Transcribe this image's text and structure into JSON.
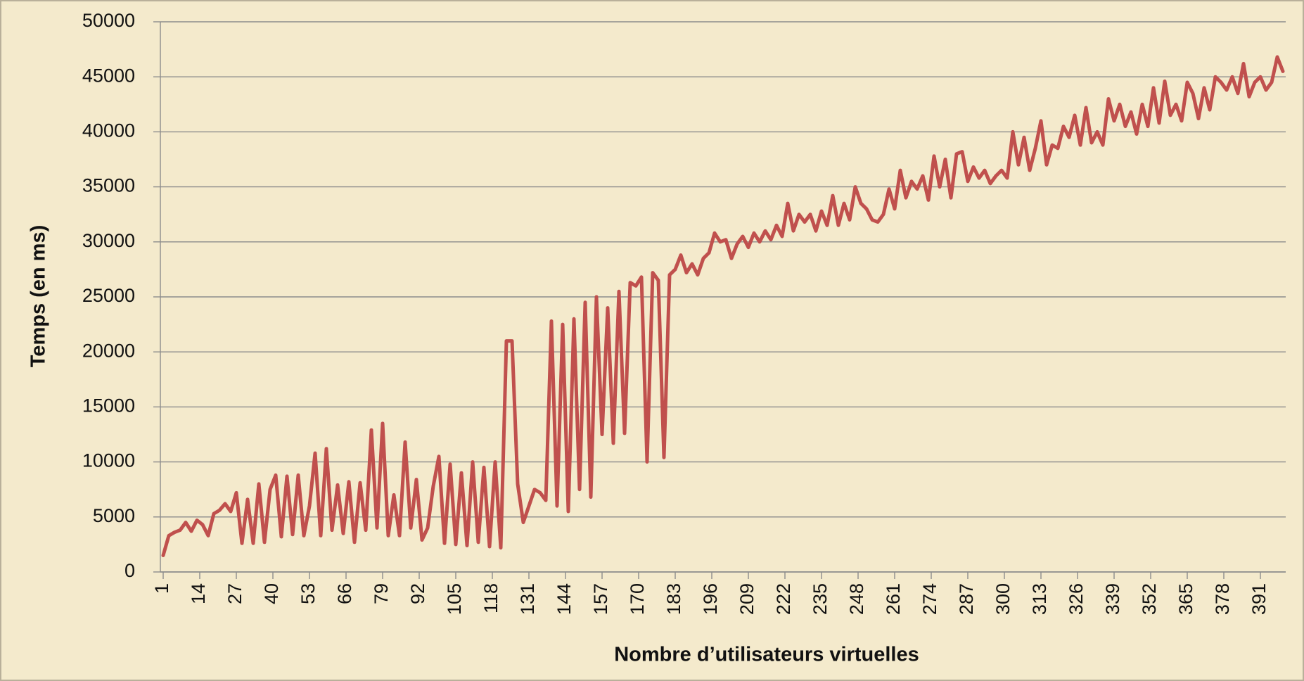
{
  "chart_data": {
    "type": "line",
    "ylabel": "Temps (en ms)",
    "xlabel": "Nombre d’utilisateurs virtuelles",
    "color": "#c0504d",
    "grid": true,
    "xlim": [
      0,
      400
    ],
    "ylim": [
      0,
      50000
    ],
    "yticks": [
      0,
      5000,
      10000,
      15000,
      20000,
      25000,
      30000,
      35000,
      40000,
      45000,
      50000
    ],
    "xticks": [
      1,
      14,
      27,
      40,
      53,
      66,
      79,
      92,
      105,
      118,
      131,
      144,
      157,
      170,
      183,
      196,
      209,
      222,
      235,
      248,
      261,
      274,
      287,
      300,
      313,
      326,
      339,
      352,
      365,
      378,
      391
    ],
    "x": [
      1,
      3,
      5,
      7,
      9,
      11,
      13,
      15,
      17,
      19,
      21,
      23,
      25,
      27,
      29,
      31,
      33,
      35,
      37,
      39,
      41,
      43,
      45,
      47,
      49,
      51,
      53,
      55,
      57,
      59,
      61,
      63,
      65,
      67,
      69,
      71,
      73,
      75,
      77,
      79,
      81,
      83,
      85,
      87,
      89,
      91,
      93,
      95,
      97,
      99,
      101,
      103,
      105,
      107,
      109,
      111,
      113,
      115,
      117,
      119,
      121,
      123,
      125,
      127,
      129,
      131,
      133,
      135,
      137,
      139,
      141,
      143,
      145,
      147,
      149,
      151,
      153,
      155,
      157,
      159,
      161,
      163,
      165,
      167,
      169,
      171,
      173,
      175,
      177,
      179,
      181,
      183,
      185,
      187,
      189,
      191,
      193,
      195,
      197,
      199,
      201,
      203,
      205,
      207,
      209,
      211,
      213,
      215,
      217,
      219,
      221,
      223,
      225,
      227,
      229,
      231,
      233,
      235,
      237,
      239,
      241,
      243,
      245,
      247,
      249,
      251,
      253,
      255,
      257,
      259,
      261,
      263,
      265,
      267,
      269,
      271,
      273,
      275,
      277,
      279,
      281,
      283,
      285,
      287,
      289,
      291,
      293,
      295,
      297,
      299,
      301,
      303,
      305,
      307,
      309,
      311,
      313,
      315,
      317,
      319,
      321,
      323,
      325,
      327,
      329,
      331,
      333,
      335,
      337,
      339,
      341,
      343,
      345,
      347,
      349,
      351,
      353,
      355,
      357,
      359,
      361,
      363,
      365,
      367,
      369,
      371,
      373,
      375,
      377,
      379,
      381,
      383,
      385,
      387,
      389,
      391,
      393,
      395,
      397,
      399
    ],
    "values": [
      1500,
      3300,
      3600,
      3800,
      4500,
      3700,
      4700,
      4300,
      3300,
      5300,
      5600,
      6200,
      5500,
      7200,
      2600,
      6600,
      2600,
      8000,
      2700,
      7500,
      8800,
      3200,
      8700,
      3400,
      8800,
      3300,
      6000,
      10800,
      3300,
      11200,
      3800,
      7900,
      3500,
      8200,
      2700,
      8100,
      3800,
      12900,
      4000,
      13500,
      3300,
      7000,
      3300,
      11800,
      4000,
      8400,
      2900,
      4000,
      7800,
      10500,
      2600,
      9800,
      2500,
      9000,
      2400,
      10000,
      2700,
      9500,
      2300,
      10000,
      2200,
      21000,
      21000,
      8000,
      4500,
      6000,
      7500,
      7200,
      6500,
      22800,
      6000,
      22500,
      5500,
      23000,
      7500,
      24500,
      6800,
      25000,
      12500,
      24000,
      11700,
      25500,
      12600,
      26300,
      26000,
      26800,
      10000,
      27200,
      26500,
      10400,
      27000,
      27500,
      28800,
      27200,
      28000,
      27000,
      28500,
      29000,
      30800,
      30000,
      30200,
      28500,
      29800,
      30500,
      29500,
      30800,
      30000,
      31000,
      30200,
      31500,
      30500,
      33500,
      31000,
      32500,
      31800,
      32500,
      31000,
      32800,
      31500,
      34200,
      31500,
      33500,
      32000,
      35000,
      33500,
      33000,
      32000,
      31800,
      32500,
      34800,
      33000,
      36500,
      34000,
      35500,
      34800,
      36000,
      33800,
      37800,
      35000,
      37500,
      34000,
      38000,
      38200,
      35500,
      36800,
      35800,
      36500,
      35300,
      36000,
      36500,
      35800,
      40000,
      37000,
      39500,
      36500,
      38500,
      41000,
      37000,
      38800,
      38500,
      40500,
      39500,
      41500,
      38800,
      42200,
      39000,
      40000,
      38800,
      43000,
      41000,
      42500,
      40500,
      41800,
      39800,
      42500,
      40500,
      44000,
      40800,
      44600,
      41500,
      42500,
      41000,
      44500,
      43500,
      41200,
      44000,
      42000,
      45000,
      44500,
      43800,
      45000,
      43500,
      46200,
      43200,
      44500,
      45000,
      43800,
      44500,
      46800,
      45500
    ]
  }
}
